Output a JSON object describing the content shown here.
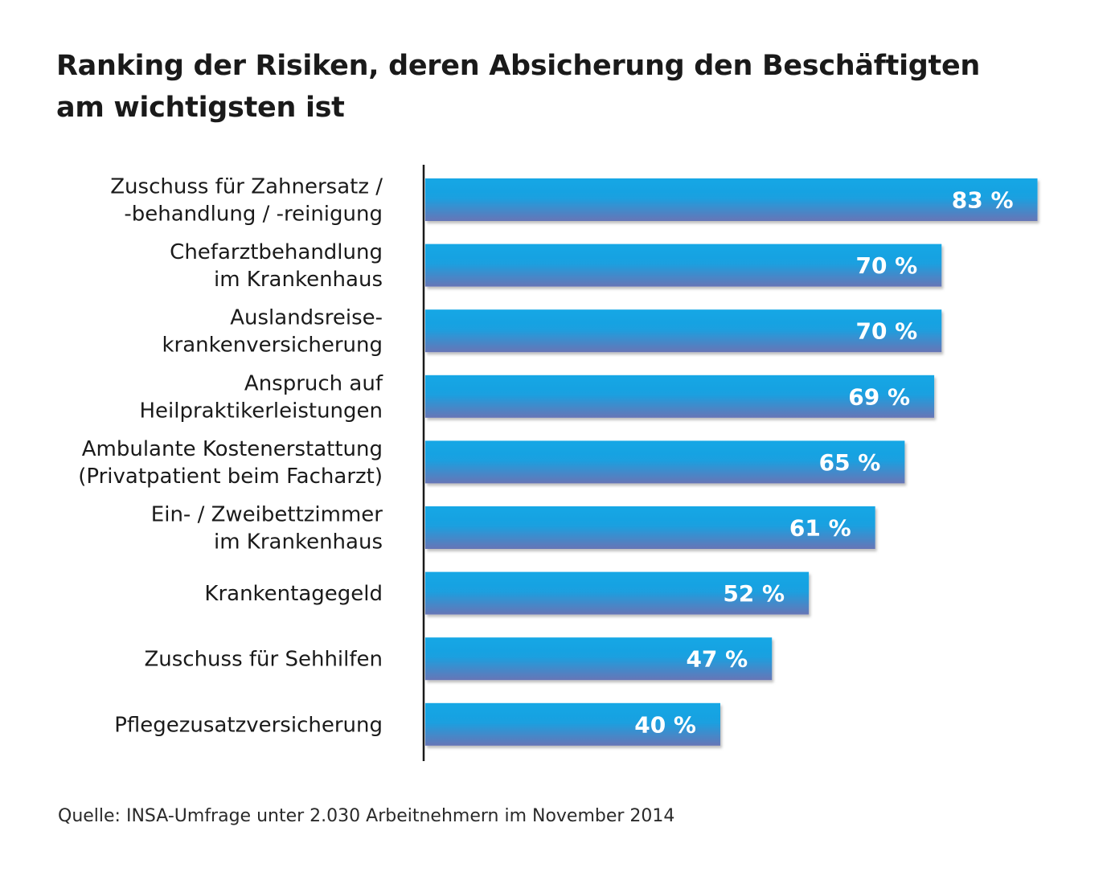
{
  "title": {
    "line1": "Ranking der Risiken, deren Absicherung den Beschäftigten",
    "line2": "am wichtigsten ist"
  },
  "source": "Quelle: INSA-Umfrage unter 2.030 Arbeitnehmern im November 2014",
  "colors": {
    "bar_top": "#16a7e5",
    "bar_bottom": "#6775b6",
    "axis": "#1a1a1a",
    "text": "#1a1a1a",
    "value_text": "#ffffff"
  },
  "chart_data": {
    "type": "bar",
    "orientation": "horizontal",
    "title": "Ranking der Risiken, deren Absicherung den Beschäftigten am wichtigsten ist",
    "xlabel": "",
    "ylabel": "",
    "xlim": [
      0,
      100
    ],
    "unit": "%",
    "grid": false,
    "legend": "none",
    "categories": [
      [
        "Zuschuss für Zahnersatz /",
        "-behandlung / -reinigung"
      ],
      [
        "Chefarztbehandlung",
        "im Krankenhaus"
      ],
      [
        "Auslandsreise-",
        "krankenversicherung"
      ],
      [
        "Anspruch auf",
        "Heilpraktikerleistungen"
      ],
      [
        "Ambulante Kostenerstattung",
        "(Privatpatient beim Facharzt)"
      ],
      [
        "Ein- / Zweibettzimmer",
        "im Krankenhaus"
      ],
      [
        "Krankentagegeld"
      ],
      [
        "Zuschuss für Sehhilfen"
      ],
      [
        "Pflegezusatzversicherung"
      ]
    ],
    "values": [
      83,
      70,
      70,
      69,
      65,
      61,
      52,
      47,
      40
    ],
    "value_labels": [
      "83 %",
      "70 %",
      "70 %",
      "69 %",
      "65 %",
      "61 %",
      "52 %",
      "47 %",
      "40 %"
    ]
  }
}
